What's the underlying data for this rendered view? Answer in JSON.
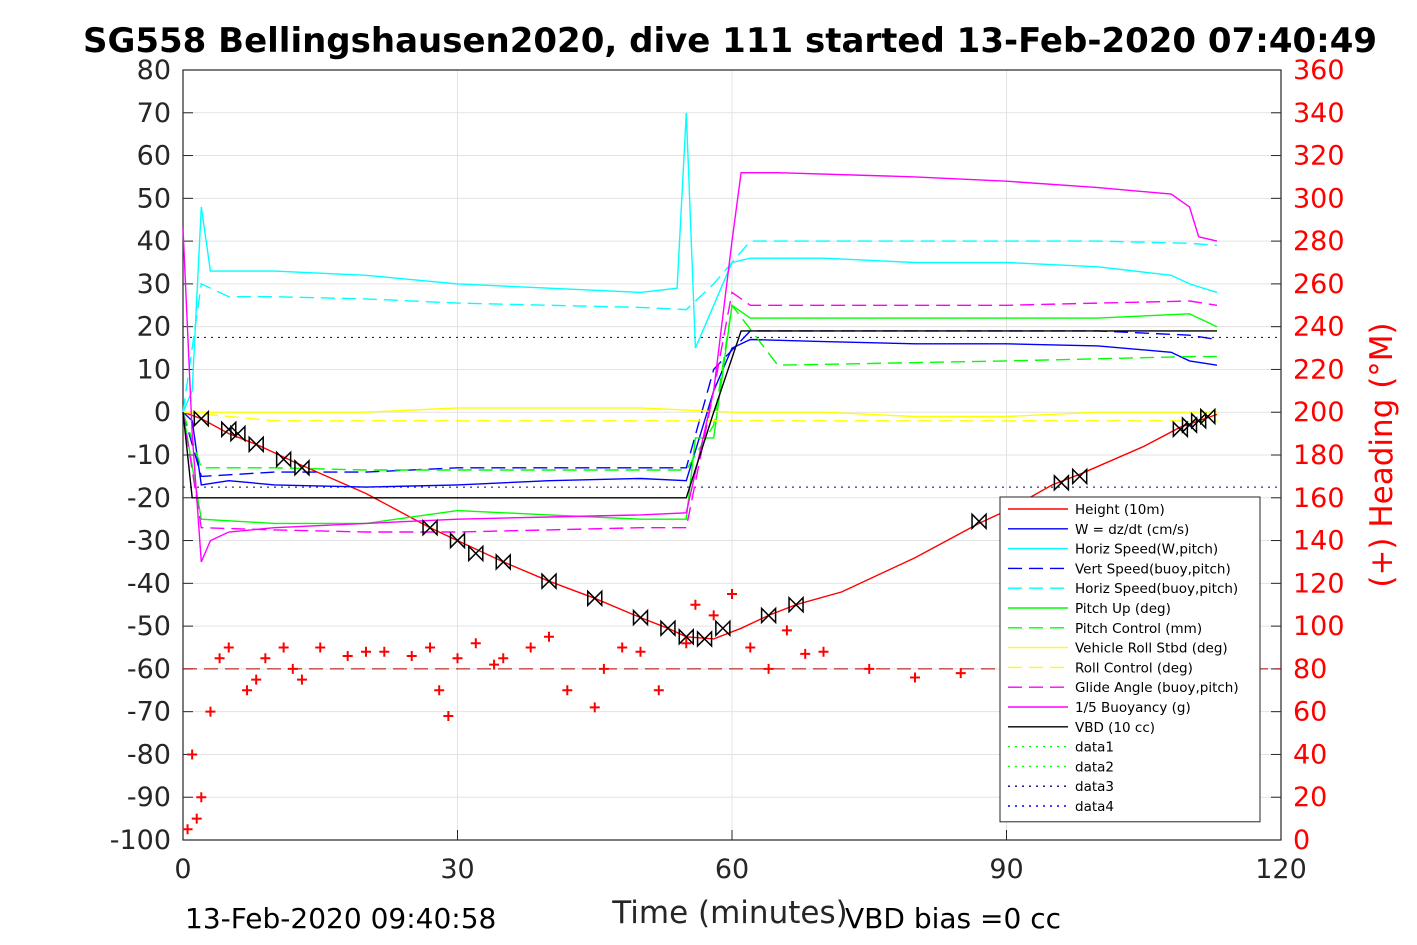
{
  "chart_data": {
    "type": "line",
    "title": "SG558 Bellingshausen2020, dive 111 started 13-Feb-2020 07:40:49",
    "xlabel": "Time (minutes)",
    "ylabel_right": "(+) Heading (°M)",
    "xlim": [
      0,
      120
    ],
    "ylim": [
      -100,
      80
    ],
    "ylim_right": [
      0,
      360
    ],
    "xticks": [
      "0",
      "30",
      "60",
      "90",
      "120"
    ],
    "yticks": [
      "80",
      "70",
      "60",
      "50",
      "40",
      "30",
      "20",
      "10",
      "0",
      "-10",
      "-20",
      "-30",
      "-40",
      "-50",
      "-60",
      "-70",
      "-80",
      "-90",
      "-100"
    ],
    "yticks_right": [
      "360",
      "340",
      "320",
      "300",
      "280",
      "260",
      "240",
      "220",
      "200",
      "180",
      "160",
      "140",
      "120",
      "100",
      "80",
      "60",
      "40",
      "20",
      "0"
    ],
    "grid": true,
    "legend_position": "lower-right",
    "footer_left": "13-Feb-2020 09:40:58",
    "footer_right": "VBD bias =0 cc",
    "colors": {
      "red": "#ff0000",
      "blue": "#0000ff",
      "cyan": "#00ffff",
      "green": "#00ff00",
      "yellow": "#ffff00",
      "magenta": "#ff00ff",
      "black": "#000000",
      "navy": "#000080"
    },
    "series": [
      {
        "name": "Height (10m)",
        "color": "#ff0000",
        "style": "solid",
        "x": [
          0,
          2,
          5,
          8,
          12,
          20,
          27,
          30,
          35,
          40,
          45,
          50,
          53,
          55,
          58,
          61,
          64,
          67,
          72,
          80,
          87,
          90,
          95,
          98,
          105,
          109,
          111,
          113
        ],
        "y": [
          0,
          -1.5,
          -5,
          -7.5,
          -11.5,
          -19,
          -27,
          -30,
          -35,
          -39.5,
          -43.5,
          -48,
          -50.5,
          -52.5,
          -53,
          -50.5,
          -47.5,
          -45,
          -42,
          -34,
          -26,
          -23,
          -17,
          -14.5,
          -8,
          -3.5,
          -2,
          -0.5
        ]
      },
      {
        "name": "W = dz/dt (cm/s)",
        "color": "#0000ff",
        "style": "solid",
        "x": [
          0,
          1,
          2,
          5,
          10,
          20,
          30,
          40,
          50,
          55,
          58,
          60,
          62,
          70,
          80,
          90,
          100,
          108,
          110,
          113
        ],
        "y": [
          0,
          -2,
          -17,
          -16,
          -17,
          -17.5,
          -17,
          -16,
          -15.5,
          -16,
          5,
          15,
          17,
          16.5,
          16,
          16,
          15.5,
          14,
          12,
          11
        ]
      },
      {
        "name": "Horiz Speed(W,pitch)",
        "color": "#00ffff",
        "style": "solid",
        "x": [
          0,
          1,
          2,
          3,
          5,
          10,
          20,
          30,
          40,
          50,
          54,
          55,
          56,
          58,
          60,
          62,
          70,
          80,
          90,
          100,
          108,
          110,
          113
        ],
        "y": [
          0,
          5,
          48,
          33,
          33,
          33,
          32,
          30,
          29,
          28,
          29,
          70,
          15,
          25,
          35,
          36,
          36,
          35,
          35,
          34,
          32,
          30,
          28
        ]
      },
      {
        "name": "Vert Speed(buoy,pitch)",
        "color": "#0000ff",
        "style": "dash",
        "x": [
          0,
          2,
          10,
          20,
          30,
          40,
          50,
          55,
          58,
          62,
          70,
          90,
          100,
          110,
          113
        ],
        "y": [
          0,
          -15,
          -14,
          -14,
          -13,
          -13,
          -13,
          -13,
          10,
          19,
          19,
          19,
          19,
          18,
          17
        ]
      },
      {
        "name": "Horiz Speed(buoy,pitch)",
        "color": "#00ffff",
        "style": "dash",
        "x": [
          0,
          2,
          5,
          10,
          20,
          30,
          40,
          50,
          55,
          58,
          62,
          70,
          90,
          100,
          110,
          113
        ],
        "y": [
          0,
          30,
          27,
          27,
          26.5,
          25.5,
          25,
          24.5,
          24,
          30,
          40,
          40,
          40,
          40,
          39.5,
          39
        ]
      },
      {
        "name": "Pitch Up (deg)",
        "color": "#00ff00",
        "style": "solid",
        "x": [
          0,
          2,
          10,
          20,
          30,
          40,
          50,
          55,
          56,
          58,
          60,
          62,
          70,
          90,
          100,
          110,
          113
        ],
        "y": [
          0,
          -25,
          -26,
          -26,
          -23,
          -24,
          -25,
          -25,
          -6,
          -6,
          25,
          22,
          22,
          22,
          22,
          23,
          20
        ]
      },
      {
        "name": "Pitch Control (mm)",
        "color": "#00ff00",
        "style": "dash",
        "x": [
          0,
          2,
          10,
          20,
          30,
          40,
          50,
          55,
          58,
          60,
          65,
          90,
          100,
          110,
          113
        ],
        "y": [
          0,
          -13,
          -13,
          -13.5,
          -13.5,
          -13.5,
          -13.5,
          -13.5,
          -3,
          25,
          11,
          12,
          12.5,
          13,
          13
        ]
      },
      {
        "name": "Vehicle Roll Stbd (deg)",
        "color": "#ffff00",
        "style": "solid",
        "x": [
          0,
          10,
          20,
          30,
          40,
          50,
          60,
          70,
          80,
          90,
          100,
          110,
          113
        ],
        "y": [
          0,
          0,
          0,
          1,
          1,
          1,
          0,
          0,
          -1,
          -1,
          0,
          0,
          0
        ]
      },
      {
        "name": "Roll Control (deg)",
        "color": "#ffff00",
        "style": "dash",
        "x": [
          0,
          10,
          20,
          30,
          40,
          50,
          60,
          70,
          80,
          90,
          100,
          110,
          113
        ],
        "y": [
          0,
          -2,
          -2,
          -2,
          -2,
          -2,
          -2,
          -2,
          -2,
          -2,
          -2,
          -2,
          -2
        ]
      },
      {
        "name": "Glide Angle (buoy,pitch)",
        "color": "#ff00ff",
        "style": "dash",
        "x": [
          0,
          2,
          10,
          20,
          30,
          40,
          50,
          55,
          58,
          60,
          62,
          70,
          90,
          100,
          110,
          113
        ],
        "y": [
          0,
          -27,
          -27.5,
          -28,
          -28,
          -27.5,
          -27,
          -27,
          5,
          28,
          25,
          25,
          25,
          25.5,
          26,
          25
        ]
      },
      {
        "name": "1/5 Buoyancy (g)",
        "color": "#ff00ff",
        "style": "solid",
        "x": [
          0,
          1,
          2,
          3,
          5,
          10,
          20,
          30,
          40,
          50,
          55,
          58,
          60,
          61,
          65,
          80,
          90,
          100,
          108,
          110,
          111,
          113
        ],
        "y": [
          43,
          -5,
          -35,
          -30,
          -28,
          -27,
          -26,
          -25,
          -24.5,
          -24,
          -23.5,
          5,
          40,
          56,
          56,
          55,
          54,
          52.5,
          51,
          48,
          41,
          40
        ]
      },
      {
        "name": "VBD (10 cc)",
        "color": "#000000",
        "style": "solid",
        "x": [
          0,
          1,
          2,
          20,
          55,
          58,
          61,
          62,
          113
        ],
        "y": [
          0,
          -20,
          -20,
          -20,
          -20,
          0,
          19,
          19,
          19
        ]
      },
      {
        "name": "data1",
        "color": "#00ff00",
        "style": "dot",
        "x": [],
        "y": []
      },
      {
        "name": "data2",
        "color": "#00ff00",
        "style": "dot",
        "x": [],
        "y": []
      },
      {
        "name": "data3",
        "color": "#000080",
        "style": "dot",
        "x": [],
        "y": []
      },
      {
        "name": "data4",
        "color": "#0000ff",
        "style": "dot",
        "x": [],
        "y": []
      }
    ],
    "reference_lines": [
      {
        "color": "#000080",
        "style": "dot",
        "y": 17.5
      },
      {
        "color": "#000080",
        "style": "dot",
        "y": -17.5
      },
      {
        "color": "#b00000",
        "style": "dash",
        "y": -60
      }
    ],
    "heading_series": {
      "axis": "right",
      "marker": "+",
      "color": "#ff0000",
      "x": [
        0.5,
        1,
        1.5,
        2,
        3,
        4,
        5,
        7,
        8,
        9,
        11,
        12,
        13,
        15,
        18,
        20,
        22,
        25,
        27,
        28,
        29,
        30,
        32,
        34,
        35,
        38,
        40,
        42,
        45,
        46,
        48,
        50,
        52,
        55,
        56,
        58,
        60,
        62,
        64,
        66,
        68,
        70,
        75,
        80,
        85,
        90,
        95,
        100,
        105,
        110,
        113
      ],
      "y": [
        5,
        40,
        10,
        20,
        60,
        85,
        90,
        70,
        75,
        85,
        90,
        80,
        75,
        90,
        86,
        88,
        88,
        86,
        90,
        70,
        58,
        85,
        92,
        82,
        85,
        90,
        95,
        70,
        62,
        80,
        90,
        88,
        70,
        92,
        110,
        105,
        115,
        90,
        80,
        98,
        87,
        88,
        80,
        76,
        78,
        82,
        75,
        78,
        80,
        78,
        80
      ]
    },
    "markers": {
      "symbol": "hourglass/triangle",
      "color": "#000000",
      "x": [
        2,
        5,
        6,
        8,
        11,
        13,
        27,
        30,
        32,
        35,
        40,
        45,
        50,
        53,
        55,
        57,
        59,
        64,
        67,
        87,
        96,
        98,
        109,
        110,
        111,
        112
      ],
      "y": [
        -1.5,
        -4,
        -5,
        -7.5,
        -11,
        -13,
        -27,
        -30,
        -33,
        -35,
        -39.5,
        -43.5,
        -48,
        -50.5,
        -52.5,
        -53,
        -50.5,
        -47.5,
        -45,
        -25.5,
        -16.5,
        -15,
        -4,
        -3,
        -2,
        -1
      ]
    }
  }
}
